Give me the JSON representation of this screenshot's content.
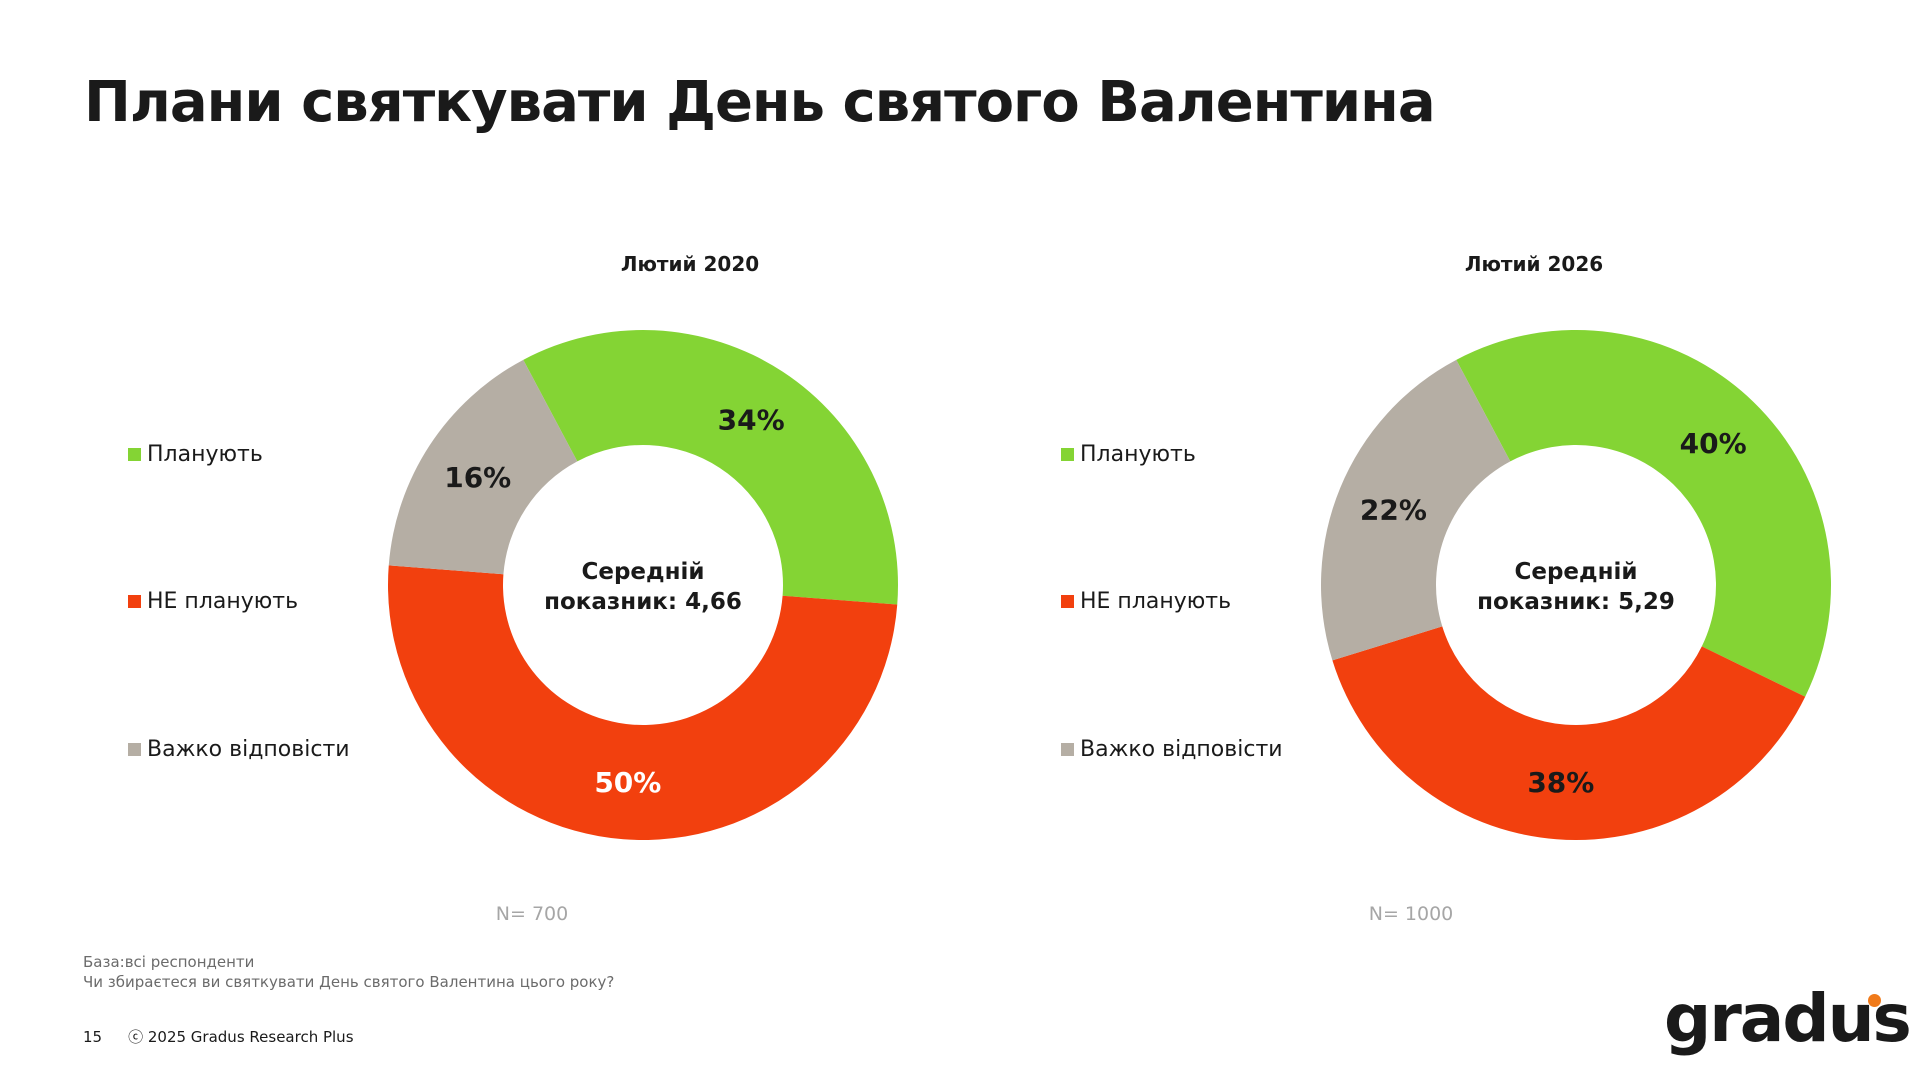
{
  "title": "Плани святкувати День святого Валентина",
  "colors": {
    "plan": "#84d434",
    "not_plan": "#f2400e",
    "hard": "#b5aea4"
  },
  "chart_data": [
    {
      "type": "pie",
      "donut": true,
      "title": "Лютий 2020",
      "categories": [
        "Планують",
        "НЕ планують",
        "Важко відповісти"
      ],
      "values": [
        34,
        50,
        16
      ],
      "data_labels": [
        "34%",
        "50%",
        "16%"
      ],
      "center_text": [
        "Середній",
        "показник: 4,66"
      ],
      "n_label": "N= 700",
      "legend": "left"
    },
    {
      "type": "pie",
      "donut": true,
      "title": "Лютий 2026",
      "categories": [
        "Планують",
        "НЕ планують",
        "Важко відповісти"
      ],
      "values": [
        40,
        38,
        22
      ],
      "data_labels": [
        "40%",
        "38%",
        "22%"
      ],
      "center_text": [
        "Середній",
        "показник: 5,29"
      ],
      "n_label": "N= 1000",
      "legend": "left"
    }
  ],
  "notes": {
    "base": "База:всі респонденти",
    "question": "Чи збираєтеся ви святкувати День святого Валентина цього року?"
  },
  "footer": {
    "page": "15",
    "copyright": "ⓒ 2025 Gradus Research Plus"
  },
  "logo": "gradus"
}
